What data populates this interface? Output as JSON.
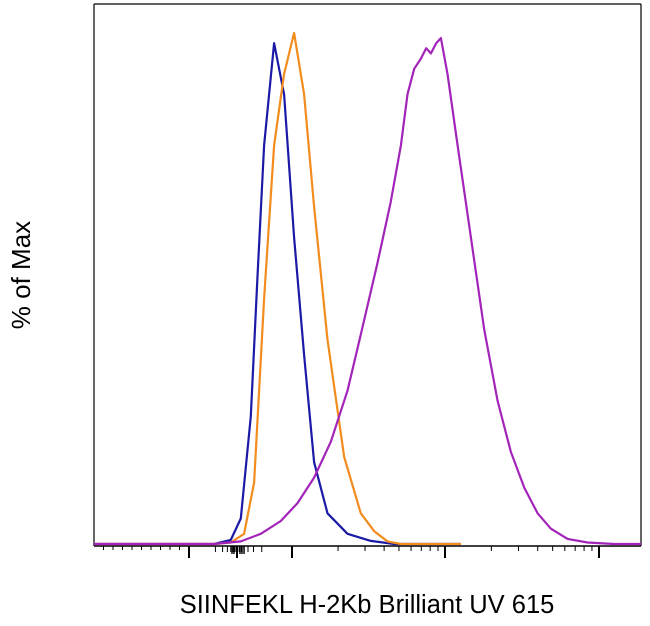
{
  "chart_data": {
    "type": "line",
    "title": "",
    "xlabel": "SIINFEKL H-2Kb Brilliant UV 615",
    "ylabel": "% of Max",
    "x_scale": "log",
    "grid": false,
    "legend": "none",
    "ylim": [
      0,
      100
    ],
    "series": [
      {
        "color": "#1a1aa6",
        "x": [
          0.0,
          0.3,
          0.55,
          0.95,
          1.4,
          1.8,
          2.05,
          2.2,
          2.35,
          2.45,
          2.55,
          2.7,
          2.85,
          3.0,
          3.15,
          3.3,
          3.5,
          3.8,
          4.15,
          4.5,
          5.0,
          5.5
        ],
        "y": [
          0,
          0,
          0,
          0,
          0,
          0,
          0.8,
          5,
          25,
          52,
          78,
          98,
          88,
          60,
          37,
          16,
          6,
          2,
          0.6,
          0,
          0,
          0
        ]
      },
      {
        "color": "#f28c1e",
        "x": [
          0.0,
          0.55,
          1.4,
          1.8,
          2.05,
          2.25,
          2.4,
          2.55,
          2.7,
          2.85,
          3.0,
          3.15,
          3.3,
          3.5,
          3.75,
          4.0,
          4.2,
          4.4,
          4.6,
          5.0,
          5.5
        ],
        "y": [
          0,
          0,
          0,
          0,
          0.3,
          2,
          12,
          48,
          78,
          92,
          100,
          88,
          66,
          40,
          17,
          6,
          2.5,
          0.5,
          0,
          0,
          0
        ]
      },
      {
        "color": "#a224b8",
        "x": [
          0.0,
          0.55,
          1.4,
          1.8,
          2.2,
          2.5,
          2.8,
          3.05,
          3.3,
          3.55,
          3.8,
          4.0,
          4.25,
          4.45,
          4.6,
          4.7,
          4.8,
          4.9,
          4.98,
          5.05,
          5.13,
          5.2,
          5.3,
          5.45,
          5.65,
          5.85,
          6.05,
          6.25,
          6.45,
          6.65,
          6.85,
          7.1,
          7.4,
          7.8,
          8.2
        ],
        "y": [
          0,
          0,
          0,
          0,
          0.5,
          2,
          4.5,
          8,
          13,
          20,
          30,
          41,
          55,
          67,
          78,
          88,
          93,
          95,
          97,
          96,
          98,
          99,
          92,
          78,
          60,
          42,
          28,
          18,
          11,
          6,
          3,
          1,
          0.3,
          0,
          0
        ]
      }
    ]
  }
}
